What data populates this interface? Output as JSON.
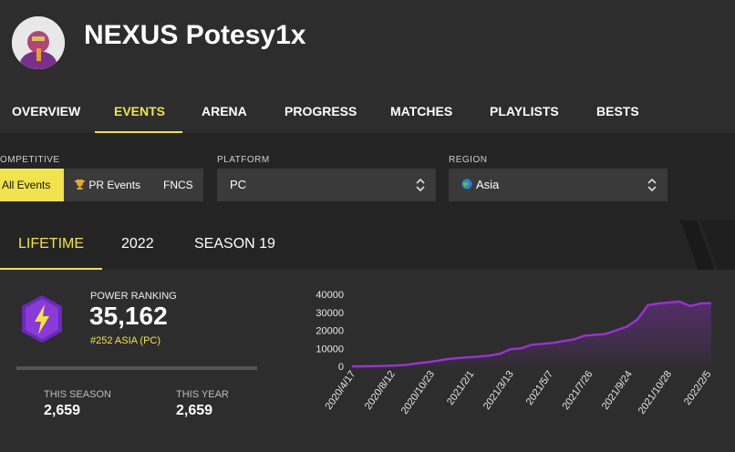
{
  "player": {
    "name": "NEXUS Potesy1x"
  },
  "nav": [
    {
      "label": "OVERVIEW",
      "active": false
    },
    {
      "label": "EVENTS",
      "active": true
    },
    {
      "label": "ARENA",
      "active": false
    },
    {
      "label": "PROGRESS",
      "active": false
    },
    {
      "label": "MATCHES",
      "active": false
    },
    {
      "label": "PLAYLISTS",
      "active": false
    },
    {
      "label": "BESTS",
      "active": false
    }
  ],
  "filters": {
    "competitive": {
      "label": "OMPETITIVE",
      "options": [
        {
          "label": "All Events",
          "active": true
        },
        {
          "label": "PR Events",
          "icon": "trophy-icon",
          "active": false
        },
        {
          "label": "FNCS",
          "active": false
        }
      ]
    },
    "platform": {
      "label": "PLATFORM",
      "value": "PC"
    },
    "region": {
      "label": "REGION",
      "value": "Asia",
      "icon": "globe-icon"
    }
  },
  "tabs": [
    {
      "label": "LIFETIME",
      "active": true
    },
    {
      "label": "2022",
      "active": false
    },
    {
      "label": "SEASON 19",
      "active": false
    }
  ],
  "power_ranking": {
    "label": "POWER RANKING",
    "value": "35,162",
    "rank": "#252 ASIA (PC)",
    "icon": "lightning-hex-icon",
    "accent": "#7a2fd0"
  },
  "stats": [
    {
      "label": "THIS SEASON",
      "value": "2,659"
    },
    {
      "label": "THIS YEAR",
      "value": "2,659"
    }
  ],
  "colors": {
    "accent": "#f0e34b",
    "line": "#9b30d9",
    "background": "#2d2d2d",
    "panel": "#242424"
  },
  "chart_data": {
    "type": "line",
    "title": "",
    "xlabel": "",
    "ylabel": "",
    "ylim": [
      0,
      40000
    ],
    "yticks": [
      0,
      10000,
      20000,
      30000,
      40000
    ],
    "x_tick_labels": [
      "2020/4/17",
      "2020/8/12",
      "2020/10/23",
      "2021/2/1",
      "2021/3/13",
      "2021/5/7",
      "2021/7/26",
      "2021/9/24",
      "2021/10/28",
      "2022/2/5"
    ],
    "values": [
      0,
      0,
      100,
      200,
      400,
      700,
      1500,
      2200,
      3000,
      4000,
      4600,
      5000,
      5400,
      6000,
      7000,
      9500,
      10000,
      12000,
      12500,
      13000,
      14000,
      15000,
      17000,
      17500,
      18000,
      20000,
      22000,
      26000,
      34000,
      35000,
      35500,
      36000,
      33500,
      35000,
      35162
    ],
    "grid": false,
    "legend": "none"
  }
}
